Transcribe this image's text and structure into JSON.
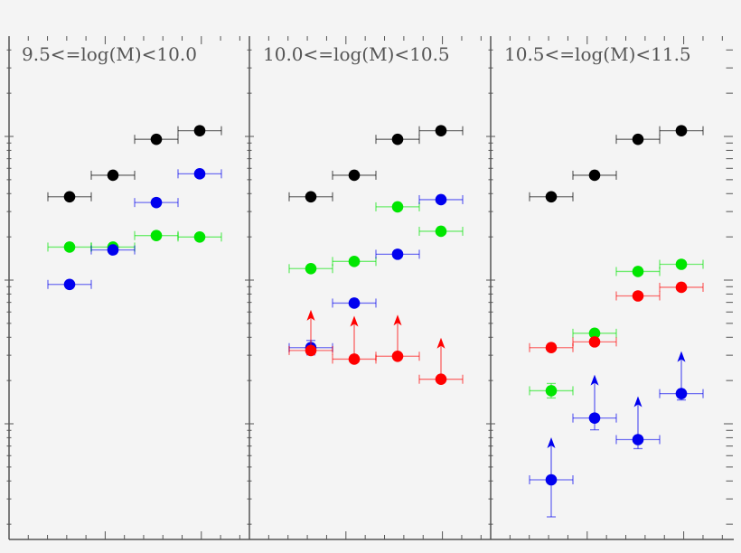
{
  "chart_data": {
    "type": "scatter",
    "title": "",
    "xlabel": "",
    "ylabel": "",
    "yscale": "log",
    "notes": "No axis tick labels visible; y values given as log10 relative units where major decade ticks are at 1, 0, -1. x values are bin indices 1-4 within each panel. Points marked 'lower_limit' have upward arrows.",
    "grid": false,
    "legend": null,
    "panels": [
      {
        "label": "9.5<=log(M)<10.0",
        "series": [
          {
            "name": "black",
            "color": "#000000",
            "x": [
              1,
              2,
              3,
              4
            ],
            "y": [
              0.58,
              0.73,
              0.98,
              1.04
            ]
          },
          {
            "name": "green",
            "color": "#00e600",
            "x": [
              1,
              2,
              3,
              4
            ],
            "y": [
              0.23,
              0.23,
              0.31,
              0.3
            ]
          },
          {
            "name": "blue",
            "color": "#0000ee",
            "x": [
              1,
              2,
              3,
              4
            ],
            "y": [
              -0.03,
              0.21,
              0.54,
              0.74
            ]
          }
        ]
      },
      {
        "label": "10.0<=log(M)<10.5",
        "series": [
          {
            "name": "black",
            "color": "#000000",
            "x": [
              1,
              2,
              3,
              4
            ],
            "y": [
              0.58,
              0.73,
              0.98,
              1.04
            ]
          },
          {
            "name": "green",
            "color": "#00e600",
            "x": [
              1,
              2,
              3,
              4
            ],
            "y": [
              0.08,
              0.13,
              0.51,
              0.34
            ]
          },
          {
            "name": "blue",
            "color": "#0000ee",
            "x": [
              1,
              2,
              3,
              4
            ],
            "y": [
              -0.47,
              -0.16,
              0.18,
              0.56
            ]
          },
          {
            "name": "red",
            "color": "#ff0000",
            "x": [
              1,
              2,
              3,
              4
            ],
            "y": [
              -0.49,
              -0.55,
              -0.53,
              -0.69
            ],
            "lower_limit": true
          }
        ]
      },
      {
        "label": "10.5<=log(M)<11.5",
        "series": [
          {
            "name": "black",
            "color": "#000000",
            "x": [
              1,
              2,
              3,
              4
            ],
            "y": [
              0.58,
              0.73,
              0.98,
              1.04
            ]
          },
          {
            "name": "green",
            "color": "#00e600",
            "x": [
              1,
              2,
              3,
              4
            ],
            "y": [
              -0.77,
              -0.37,
              0.06,
              0.11
            ]
          },
          {
            "name": "red",
            "color": "#ff0000",
            "x": [
              1,
              2,
              3,
              4
            ],
            "y": [
              -0.47,
              -0.43,
              -0.11,
              -0.05
            ]
          },
          {
            "name": "blue",
            "color": "#0000ee",
            "x": [
              1,
              2,
              3,
              4
            ],
            "y": [
              -1.39,
              -0.96,
              -1.11,
              -0.79
            ],
            "lower_limit": true
          }
        ]
      }
    ]
  },
  "panels": [
    {
      "title": "9.5<=log(M)<10.0"
    },
    {
      "title": "10.0<=log(M)<10.5"
    },
    {
      "title": "10.5<=log(M)<11.5"
    }
  ],
  "colors": {
    "background": "#f4f4f4",
    "axis": "#555555",
    "black": "#000000",
    "green": "#00e600",
    "blue": "#0000ee",
    "red": "#ff0000"
  }
}
